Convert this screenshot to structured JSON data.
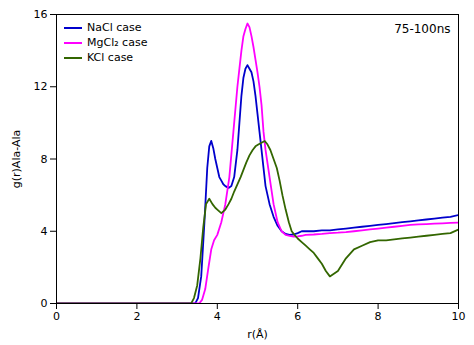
{
  "chart_data": {
    "type": "line",
    "annotation": "75-100ns",
    "xlabel": "r(Å)",
    "ylabel": "g(r)Ala-Ala",
    "xlim": [
      0,
      10
    ],
    "ylim": [
      0,
      16
    ],
    "xticks": [
      0,
      2,
      4,
      6,
      8,
      10
    ],
    "yticks": [
      0,
      4,
      8,
      12,
      16
    ],
    "grid": false,
    "legend": "upper left",
    "series": [
      {
        "name": "NaCl case",
        "color": "#0000cc",
        "x": [
          0.0,
          3.45,
          3.52,
          3.6,
          3.68,
          3.75,
          3.8,
          3.85,
          3.9,
          3.95,
          4.0,
          4.05,
          4.1,
          4.15,
          4.2,
          4.28,
          4.35,
          4.42,
          4.5,
          4.55,
          4.6,
          4.65,
          4.7,
          4.75,
          4.8,
          4.85,
          4.9,
          4.95,
          5.0,
          5.05,
          5.1,
          5.15,
          5.2,
          5.3,
          5.4,
          5.5,
          5.6,
          5.7,
          5.8,
          5.9,
          6.0,
          6.1,
          6.2,
          6.4,
          6.6,
          6.8,
          7.0,
          7.2,
          7.4,
          7.6,
          7.8,
          8.0,
          8.2,
          8.4,
          8.6,
          8.8,
          9.0,
          9.2,
          9.4,
          9.6,
          9.8,
          10.0
        ],
        "values": [
          0.0,
          0.0,
          0.3,
          1.5,
          4.5,
          7.5,
          8.7,
          9.0,
          8.6,
          8.0,
          7.5,
          7.0,
          6.8,
          6.6,
          6.5,
          6.4,
          6.5,
          7.0,
          8.5,
          10.0,
          11.5,
          12.5,
          13.0,
          13.2,
          13.0,
          12.8,
          12.3,
          11.5,
          10.5,
          9.5,
          8.5,
          7.5,
          6.5,
          5.5,
          4.8,
          4.3,
          4.0,
          3.85,
          3.8,
          3.82,
          3.9,
          4.0,
          4.0,
          4.0,
          4.05,
          4.05,
          4.1,
          4.15,
          4.2,
          4.25,
          4.3,
          4.35,
          4.4,
          4.45,
          4.5,
          4.55,
          4.6,
          4.65,
          4.7,
          4.75,
          4.8,
          4.9
        ]
      },
      {
        "name": "MgCl₂ case",
        "color": "#ff00ff",
        "x": [
          0.0,
          3.55,
          3.62,
          3.7,
          3.78,
          3.85,
          3.92,
          4.0,
          4.1,
          4.2,
          4.3,
          4.4,
          4.5,
          4.55,
          4.6,
          4.65,
          4.7,
          4.75,
          4.8,
          4.85,
          4.9,
          4.95,
          5.0,
          5.05,
          5.1,
          5.15,
          5.2,
          5.3,
          5.4,
          5.5,
          5.6,
          5.7,
          5.8,
          5.9,
          6.0,
          6.1,
          6.2,
          6.4,
          6.6,
          6.8,
          7.0,
          7.2,
          7.4,
          7.6,
          7.8,
          8.0,
          8.2,
          8.4,
          8.6,
          8.8,
          9.0,
          9.2,
          9.4,
          9.6,
          9.8,
          10.0
        ],
        "values": [
          0.0,
          0.0,
          0.2,
          0.8,
          2.0,
          3.0,
          3.5,
          3.8,
          4.5,
          5.5,
          7.0,
          9.5,
          12.0,
          13.0,
          14.0,
          14.8,
          15.2,
          15.5,
          15.3,
          14.8,
          14.2,
          13.5,
          12.8,
          12.0,
          11.0,
          9.5,
          8.5,
          7.0,
          5.5,
          4.5,
          4.0,
          3.8,
          3.75,
          3.7,
          3.72,
          3.75,
          3.8,
          3.82,
          3.85,
          3.9,
          3.92,
          3.95,
          4.0,
          4.05,
          4.1,
          4.15,
          4.2,
          4.25,
          4.3,
          4.35,
          4.38,
          4.4,
          4.42,
          4.44,
          4.46,
          4.48
        ]
      },
      {
        "name": "KCl case",
        "color": "#336600",
        "x": [
          0.0,
          3.35,
          3.42,
          3.5,
          3.58,
          3.65,
          3.72,
          3.8,
          3.88,
          3.95,
          4.0,
          4.05,
          4.1,
          4.15,
          4.2,
          4.28,
          4.35,
          4.42,
          4.5,
          4.58,
          4.65,
          4.72,
          4.8,
          4.88,
          4.95,
          5.02,
          5.1,
          5.18,
          5.25,
          5.32,
          5.4,
          5.48,
          5.55,
          5.62,
          5.7,
          5.78,
          5.85,
          5.92,
          6.0,
          6.1,
          6.2,
          6.3,
          6.4,
          6.5,
          6.6,
          6.7,
          6.8,
          7.0,
          7.2,
          7.4,
          7.6,
          7.8,
          8.0,
          8.2,
          8.4,
          8.6,
          8.8,
          9.0,
          9.2,
          9.4,
          9.6,
          9.8,
          10.0
        ],
        "values": [
          0.0,
          0.0,
          0.3,
          1.0,
          2.5,
          4.2,
          5.5,
          5.8,
          5.5,
          5.3,
          5.2,
          5.1,
          5.0,
          5.1,
          5.2,
          5.5,
          5.8,
          6.2,
          6.6,
          7.0,
          7.4,
          7.8,
          8.2,
          8.5,
          8.7,
          8.8,
          8.9,
          9.0,
          8.8,
          8.5,
          8.0,
          7.5,
          6.8,
          6.0,
          5.2,
          4.5,
          4.0,
          3.8,
          3.6,
          3.4,
          3.2,
          3.0,
          2.8,
          2.5,
          2.2,
          1.8,
          1.5,
          1.8,
          2.5,
          3.0,
          3.2,
          3.4,
          3.5,
          3.5,
          3.55,
          3.6,
          3.65,
          3.7,
          3.75,
          3.8,
          3.85,
          3.9,
          4.1
        ]
      }
    ]
  }
}
